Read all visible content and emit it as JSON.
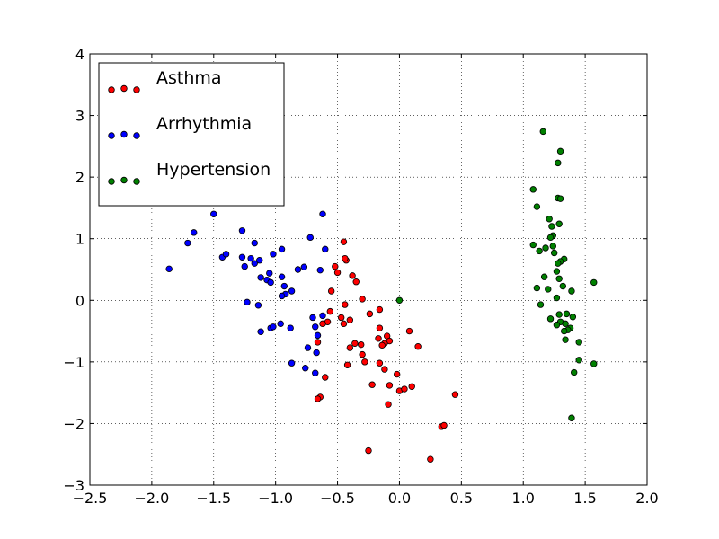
{
  "chart_data": {
    "type": "scatter",
    "title": "",
    "xlabel": "",
    "ylabel": "",
    "xlim": [
      -2.5,
      2.0
    ],
    "ylim": [
      -3,
      4
    ],
    "xticks": [
      "−2.5",
      "−2.0",
      "−1.5",
      "−1.0",
      "−0.5",
      "0.0",
      "0.5",
      "1.0",
      "1.5",
      "2.0"
    ],
    "yticks": [
      "−3",
      "−2",
      "−1",
      "0",
      "1",
      "2",
      "3",
      "4"
    ],
    "xtick_values": [
      -2.5,
      -2.0,
      -1.5,
      -1.0,
      -0.5,
      0.0,
      0.5,
      1.0,
      1.5,
      2.0
    ],
    "ytick_values": [
      -3,
      -2,
      -1,
      0,
      1,
      2,
      3,
      4
    ],
    "grid": true,
    "legend_position": "upper-left",
    "series": [
      {
        "name": "Asthma",
        "color": "#ff0000",
        "points": [
          [
            -0.45,
            0.95
          ],
          [
            -0.52,
            0.55
          ],
          [
            -0.43,
            0.65
          ],
          [
            -0.38,
            0.4
          ],
          [
            -0.35,
            0.3
          ],
          [
            -0.55,
            0.15
          ],
          [
            -0.3,
            0.02
          ],
          [
            -0.44,
            -0.07
          ],
          [
            -0.56,
            -0.18
          ],
          [
            -0.47,
            -0.28
          ],
          [
            -0.4,
            -0.32
          ],
          [
            -0.58,
            -0.35
          ],
          [
            -0.62,
            -0.38
          ],
          [
            -0.45,
            -0.38
          ],
          [
            -0.24,
            -0.22
          ],
          [
            -0.16,
            -0.15
          ],
          [
            -0.16,
            -0.45
          ],
          [
            -0.1,
            -0.58
          ],
          [
            -0.17,
            -0.62
          ],
          [
            -0.08,
            -0.66
          ],
          [
            -0.12,
            -0.7
          ],
          [
            -0.14,
            -0.73
          ],
          [
            -0.31,
            -0.72
          ],
          [
            -0.4,
            -0.77
          ],
          [
            -0.3,
            -0.88
          ],
          [
            -0.28,
            -1.0
          ],
          [
            -0.16,
            -1.02
          ],
          [
            -0.12,
            -1.12
          ],
          [
            -0.42,
            -1.05
          ],
          [
            -0.02,
            -1.2
          ],
          [
            -0.6,
            -1.25
          ],
          [
            -0.66,
            -0.68
          ],
          [
            -0.08,
            -1.38
          ],
          [
            -0.22,
            -1.37
          ],
          [
            0.0,
            -1.47
          ],
          [
            0.04,
            -1.44
          ],
          [
            0.1,
            -1.4
          ],
          [
            -0.09,
            -1.69
          ],
          [
            -0.64,
            -1.57
          ],
          [
            -0.66,
            -1.6
          ],
          [
            0.45,
            -1.53
          ],
          [
            0.34,
            -2.05
          ],
          [
            0.36,
            -2.03
          ],
          [
            -0.25,
            -2.44
          ],
          [
            0.25,
            -2.58
          ],
          [
            0.08,
            -0.5
          ],
          [
            0.15,
            -0.75
          ],
          [
            -0.36,
            -0.7
          ],
          [
            -0.5,
            0.45
          ],
          [
            -0.44,
            0.68
          ]
        ]
      },
      {
        "name": "Arrhythmia",
        "color": "#0000ff",
        "points": [
          [
            -1.86,
            0.51
          ],
          [
            -1.71,
            0.93
          ],
          [
            -1.66,
            1.1
          ],
          [
            -1.5,
            1.4
          ],
          [
            -1.43,
            0.7
          ],
          [
            -1.4,
            0.75
          ],
          [
            -1.27,
            1.13
          ],
          [
            -1.27,
            0.7
          ],
          [
            -1.25,
            0.55
          ],
          [
            -1.2,
            0.68
          ],
          [
            -1.17,
            0.93
          ],
          [
            -1.17,
            0.6
          ],
          [
            -1.13,
            0.65
          ],
          [
            -1.12,
            0.37
          ],
          [
            -1.07,
            0.33
          ],
          [
            -1.05,
            0.44
          ],
          [
            -1.04,
            0.29
          ],
          [
            -1.02,
            0.75
          ],
          [
            -0.95,
            0.83
          ],
          [
            -0.95,
            0.38
          ],
          [
            -0.93,
            0.23
          ],
          [
            -0.92,
            0.1
          ],
          [
            -0.95,
            0.07
          ],
          [
            -0.87,
            0.15
          ],
          [
            -0.82,
            0.5
          ],
          [
            -0.77,
            0.54
          ],
          [
            -0.72,
            1.02
          ],
          [
            -0.64,
            0.49
          ],
          [
            -0.62,
            1.4
          ],
          [
            -0.6,
            0.83
          ],
          [
            -1.23,
            -0.03
          ],
          [
            -1.14,
            -0.08
          ],
          [
            -1.04,
            -0.45
          ],
          [
            -1.02,
            -0.43
          ],
          [
            -0.96,
            -0.38
          ],
          [
            -0.88,
            -0.45
          ],
          [
            -1.12,
            -0.51
          ],
          [
            -0.7,
            -0.28
          ],
          [
            -0.62,
            -0.25
          ],
          [
            -0.66,
            -0.57
          ],
          [
            -0.68,
            -0.43
          ],
          [
            -0.74,
            -0.77
          ],
          [
            -0.67,
            -0.85
          ],
          [
            -0.87,
            -1.02
          ],
          [
            -0.76,
            -1.1
          ],
          [
            -0.68,
            -1.18
          ]
        ]
      },
      {
        "name": "Hypertension",
        "color": "#008000",
        "points": [
          [
            0.0,
            0.0
          ],
          [
            1.16,
            2.74
          ],
          [
            1.3,
            2.42
          ],
          [
            1.28,
            2.23
          ],
          [
            1.08,
            1.8
          ],
          [
            1.28,
            1.66
          ],
          [
            1.3,
            1.65
          ],
          [
            1.11,
            1.52
          ],
          [
            1.21,
            1.32
          ],
          [
            1.29,
            1.24
          ],
          [
            1.23,
            1.2
          ],
          [
            1.24,
            1.05
          ],
          [
            1.22,
            1.02
          ],
          [
            1.08,
            0.9
          ],
          [
            1.13,
            0.8
          ],
          [
            1.18,
            0.85
          ],
          [
            1.24,
            0.88
          ],
          [
            1.25,
            0.77
          ],
          [
            1.33,
            0.67
          ],
          [
            1.3,
            0.63
          ],
          [
            1.28,
            0.6
          ],
          [
            1.27,
            0.47
          ],
          [
            1.17,
            0.38
          ],
          [
            1.29,
            0.35
          ],
          [
            1.11,
            0.2
          ],
          [
            1.2,
            0.18
          ],
          [
            1.32,
            0.23
          ],
          [
            1.39,
            0.15
          ],
          [
            1.57,
            0.29
          ],
          [
            1.27,
            0.04
          ],
          [
            1.14,
            -0.07
          ],
          [
            1.29,
            -0.23
          ],
          [
            1.35,
            -0.22
          ],
          [
            1.4,
            -0.27
          ],
          [
            1.22,
            -0.3
          ],
          [
            1.3,
            -0.35
          ],
          [
            1.34,
            -0.38
          ],
          [
            1.27,
            -0.4
          ],
          [
            1.38,
            -0.45
          ],
          [
            1.36,
            -0.48
          ],
          [
            1.33,
            -0.5
          ],
          [
            1.45,
            -0.68
          ],
          [
            1.34,
            -0.64
          ],
          [
            1.45,
            -0.97
          ],
          [
            1.57,
            -1.03
          ],
          [
            1.41,
            -1.17
          ],
          [
            1.39,
            -1.91
          ]
        ]
      }
    ]
  }
}
